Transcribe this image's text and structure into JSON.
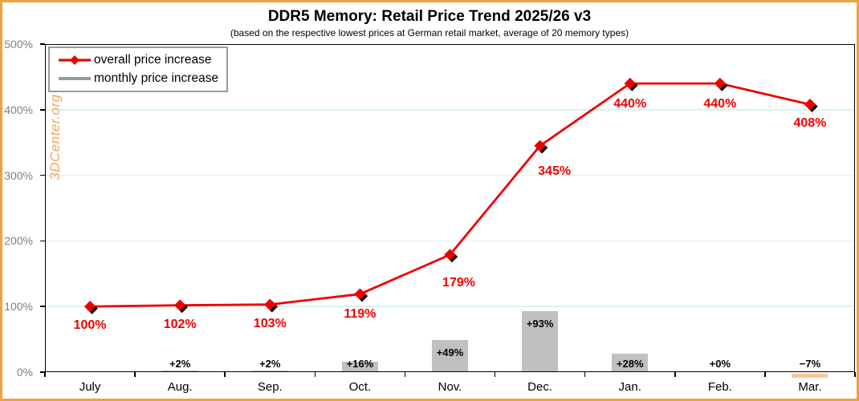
{
  "header": {
    "title": "DDR5 Memory: Retail Price Trend 2025/26 v3",
    "subtitle": "(based on the respective lowest prices at German retail market, average of 20 memory types)"
  },
  "watermark": "3DCenter.org",
  "legend": {
    "items": [
      {
        "label": "overall price increase",
        "color": "#ee0000"
      },
      {
        "label": "monthly price increase",
        "color": "#9a9a9a"
      }
    ]
  },
  "colors": {
    "frame_border": "#eda33c",
    "line_red": "#ee0000",
    "marker_shadow": "#000000",
    "bar_gray": "#c0c0c0",
    "bar_negative_peach": "#f7c799",
    "gridline_cyan": "#d8f3f1",
    "axis_black": "#000000",
    "ytick_text_gray": "#7f7f7f",
    "watermark_orange": "#f4a55f"
  },
  "chart_data": {
    "type": "line",
    "title": "DDR5 Memory: Retail Price Trend 2025/26 v3",
    "subtitle": "(based on the respective lowest prices at German retail market, average of 20 memory types)",
    "categories": [
      "July",
      "Aug.",
      "Sep.",
      "Oct.",
      "Nov.",
      "Dec.",
      "Jan.",
      "Feb.",
      "Mar."
    ],
    "series": [
      {
        "name": "overall price increase",
        "type": "line",
        "color": "#ee0000",
        "values": [
          100,
          102,
          103,
          119,
          179,
          345,
          440,
          440,
          408
        ],
        "point_labels": [
          "100%",
          "102%",
          "103%",
          "119%",
          "179%",
          "345%",
          "440%",
          "440%",
          "408%"
        ]
      },
      {
        "name": "monthly price increase",
        "type": "bar",
        "color": "#c0c0c0",
        "negative_color": "#f7c799",
        "values": [
          null,
          2,
          2,
          16,
          49,
          93,
          28,
          0,
          -7
        ],
        "point_labels": [
          null,
          "+2%",
          "+2%",
          "+16%",
          "+49%",
          "+93%",
          "+28%",
          "+0%",
          "−7%"
        ]
      }
    ],
    "ylim": [
      0,
      500
    ],
    "yticks": [
      0,
      100,
      200,
      300,
      400,
      500
    ],
    "ytick_labels": [
      "0%",
      "100%",
      "200%",
      "300%",
      "400%",
      "500%"
    ],
    "grid": true,
    "legend_position": "top-left"
  }
}
